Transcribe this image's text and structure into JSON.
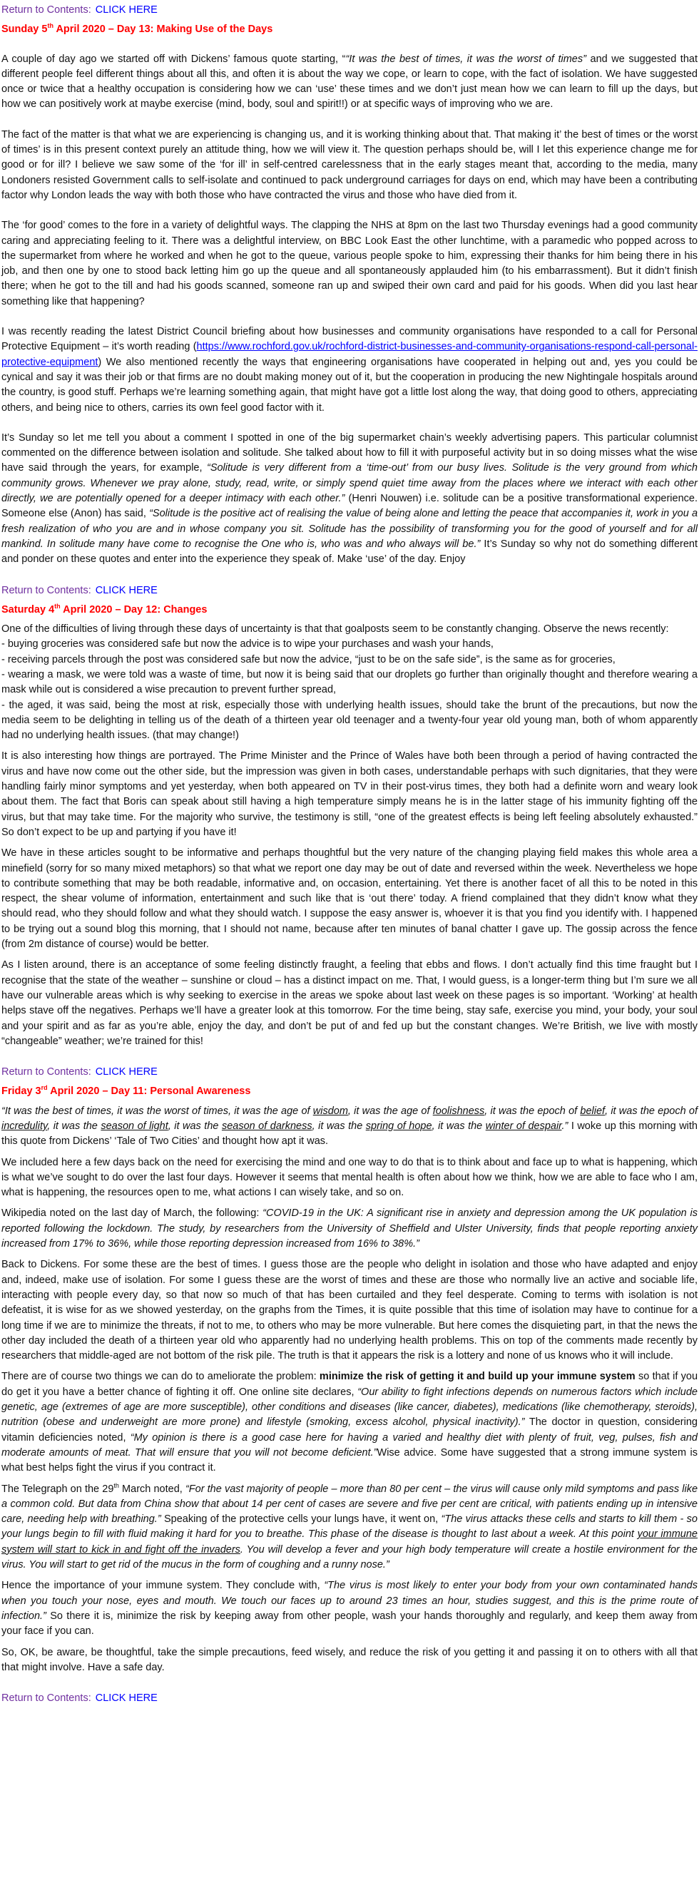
{
  "return_links": [
    {
      "label": "Return to Contents:",
      "link": "CLICK HERE"
    },
    {
      "label": "Return to Contents:",
      "link": "CLICK HERE"
    },
    {
      "label": "Return to Contents:",
      "link": "CLICK HERE"
    },
    {
      "label": "Return to Contents:",
      "link": "CLICK HERE"
    }
  ],
  "sections": [
    {
      "heading": [
        "Sunday 5",
        {
          "sup": "th"
        },
        " April 2020 – Day 13: Making Use of the Days"
      ],
      "paragraphs": [
        [
          "A couple of day ago we started off with Dickens’ famous quote starting, “",
          {
            "italic": "“It was the best of times, it was the worst of times”"
          },
          " and we suggested that different people feel different things about all this, and often it is about the way we cope, or learn to cope, with the fact of isolation. We have suggested once or twice that a healthy occupation is considering how we can ‘use’ these times and we don’t just mean how we can learn to fill up the days, but how we can positively work at maybe exercise (mind, body, soul and spirit!!) or at specific ways of improving who we are."
        ],
        [
          "The fact of the matter is that what we are experiencing is changing us, and it is working thinking about that. That making it’ the best of times or the worst of times’ is in this present context purely an attitude thing, how we will view it. The question perhaps should be, will I let this experience change me for good or for ill?  I believe we saw some of the ‘for ill’ in self-centred carelessness that in the early stages meant that, according to the media, many Londoners resisted Government calls to self-isolate and continued to pack underground carriages for days on end, which may have been a contributing factor why London leads the way with both those who have contracted the virus and those who have died from it."
        ],
        [
          "The ‘for good’ comes to the fore in a variety of delightful ways. The clapping the NHS at 8pm on the last two Thursday evenings had a good community caring and appreciating feeling to it. There was a delightful interview, on BBC Look East the other lunchtime, with a paramedic who popped across to the supermarket from where he worked and when he got to the queue, various people spoke to him, expressing their thanks for him being there in his job, and then one by one to stood back letting him go up the queue and all spontaneously applauded him (to his embarrassment). But it didn’t finish there; when he got to the till and had his goods scanned, someone ran up and swiped their own card and paid for his goods. When did you last hear something like that happening?"
        ],
        [
          "I was recently reading the latest District Council briefing about how businesses and community organisations have responded to a call for Personal Protective Equipment – it’s worth reading (",
          {
            "link": "https://www.rochford.gov.uk/rochford-district-businesses-and-community-organisations-respond-call-personal-protective-equipment"
          },
          ") We also mentioned recently the ways that engineering organisations have cooperated in helping out and, yes you could be cynical and say it was their job or that firms are no doubt making money out of it, but the cooperation in producing the new Nightingale hospitals around the country, is good stuff.  Perhaps we’re learning something again, that might have got a little lost along the way, that doing good to others, appreciating others, and being nice to others, carries its own feel good factor with it."
        ],
        [
          "It’s Sunday so let me tell you about a comment I spotted in one of the big supermarket chain’s weekly advertising papers. This particular columnist commented on the difference between isolation and solitude. She talked about how to fill it with purposeful activity but in so doing misses what the wise have said through the years, for example, ",
          {
            "italic": "“Solitude is very different from a ‘time-out’ from our busy lives. Solitude is the very ground from which community grows. Whenever we pray alone, study, read, write, or simply spend quiet time away from the places where we interact with each other directly, we are potentially opened for a deeper intimacy with each other.”"
          },
          " (Henri Nouwen) i.e. solitude can be a positive transformational experience. Someone else (Anon) has said, ",
          {
            "italic": "“Solitude is the positive act of realising the value of being alone and letting the peace that accompanies it, work in you a fresh realization of who you are and in whose company you sit. Solitude has the possibility of transforming you for the good of yourself and for all mankind. In solitude many have come to recognise the One who is, who was and who always will be.”"
          },
          " It’s Sunday so why not do something different and ponder on these quotes and enter into the experience they speak of.  Make ‘use’ of the day. Enjoy"
        ]
      ]
    },
    {
      "heading": [
        "Saturday 4",
        {
          "sup": "th"
        },
        " April 2020 – Day 12: Changes"
      ],
      "paragraphs": [
        [
          "One of the difficulties of living through these days of uncertainty is that that goalposts seem to be constantly changing. Observe the news recently:",
          {
            "line": "- buying groceries was considered safe but now the advice is to wipe your purchases and wash your hands,"
          },
          {
            "line": "- receiving parcels through the post was considered safe but now the advice, “just to be on the safe side”, is the same as for groceries,"
          },
          {
            "line": "- wearing a mask, we were told was a waste of time, but now it is being said that our droplets go further than originally thought and therefore wearing a mask while out is considered a wise precaution to prevent further spread,"
          },
          {
            "line": "- the aged, it was said, being the most at risk, especially those with underlying health issues, should take the brunt of the precautions, but now the media seem to be delighting in telling us of the death of a thirteen year old teenager and a twenty-four year old young man, both of whom apparently had no underlying health issues. (that may change!)"
          }
        ],
        [
          "It is also interesting how things are portrayed. The Prime Minister and the Prince of Wales have both been through a period of having contracted the virus and have now come out the other side, but the impression was given in both cases, understandable perhaps with such dignitaries, that they were handling fairly minor symptoms and yet yesterday, when both appeared on TV in their post-virus times, they both had a definite worn and weary look about them. The fact that Boris can speak about still having a high temperature simply means he is in the latter stage of his immunity fighting off the virus, but that may take time. For the majority who survive, the testimony is still, “one of the greatest effects is being left feeling absolutely exhausted.” So don’t expect to be up and partying if you have it!"
        ],
        [
          "We have in these articles sought to be informative and perhaps thoughtful but the very nature of the changing playing field makes this whole area a minefield (sorry for so many mixed metaphors) so that what we report one day may be out of date and reversed within the week. Nevertheless we hope to contribute something that may be both readable, informative and, on occasion, entertaining. Yet there is another facet of all this to be noted in this respect, the shear volume of information, entertainment and such like that is ‘out there’ today. A friend complained that they didn’t know what they should read, who they should follow and what they should watch. I suppose the easy answer is, whoever it is that you find you identify with. I happened to be trying out a sound blog this morning, that I should not name, because after ten minutes of banal chatter I gave up. The gossip across the fence (from 2m distance of course) would be better."
        ],
        [
          "As I listen around, there is an acceptance of some feeling distinctly fraught, a feeling that ebbs and flows. I don’t actually find this time fraught but I recognise that the state of the weather – sunshine or cloud – has a distinct impact on me. That, I would guess, is a longer-term thing but I’m sure we all have our vulnerable areas which is why seeking to exercise in the areas we spoke about last week on these pages is so important.  ‘Working’ at health helps stave off the negatives. Perhaps we’ll have a greater look at this tomorrow. For the time being, stay safe, exercise you mind, your body, your soul and your spirit and as far as you’re able, enjoy the day, and don’t be put of and fed up but the constant changes. We’re British, we live with mostly “changeable” weather; we’re trained for this!"
        ]
      ]
    },
    {
      "heading": [
        "Friday 3",
        {
          "sup": "rd"
        },
        "  April 2020 – Day 11: Personal Awareness"
      ],
      "paragraphs": [
        [
          {
            "italic": "“It was the best of times, it was the worst of times, it was the age of "
          },
          {
            "italic_underline": "wisdom"
          },
          {
            "italic": ", it was the age of "
          },
          {
            "italic_underline": "foolishness"
          },
          {
            "italic": ", it was the epoch of "
          },
          {
            "italic_underline": "belief"
          },
          {
            "italic": ", it was the epoch of "
          },
          {
            "italic_underline": "incredulity"
          },
          {
            "italic": ", it was the "
          },
          {
            "italic_underline": "season of light"
          },
          {
            "italic": ", it was the "
          },
          {
            "italic_underline": "season of darkness"
          },
          {
            "italic": ", it was the "
          },
          {
            "italic_underline": "spring of hope"
          },
          {
            "italic": ", it was the "
          },
          {
            "italic_underline": "winter of despair"
          },
          {
            "italic": ".”"
          },
          " I woke up this morning with this quote from Dickens’ ‘Tale of Two Cities’ and thought how apt it was."
        ],
        [
          "We included here a few days back on the need for exercising the mind and one way to do that is to think about and face up to what is happening, which is what we’ve sought to do over the last four days. However it seems that mental health is often about how we think, how we are able to face who I am, what is happening, the resources open to me, what actions I can wisely take, and so on."
        ],
        [
          "Wikipedia noted on the last day of March, the following: ",
          {
            "italic": "“COVID-19 in the UK: A significant rise in anxiety and depression among the UK population is reported following the lockdown. The study, by researchers from the University of Sheffield and Ulster University, finds that people reporting anxiety increased from 17% to 36%, while those reporting depression increased from 16% to 38%.”"
          }
        ],
        [
          "Back to Dickens. For some these are the best of times. I guess those are the people who delight in isolation and those who have adapted and enjoy and, indeed, make use of isolation. For some I guess these are the worst of times and these are those who normally live an active and sociable life, interacting with people every day, so that now so much of that has been curtailed and they feel desperate. Coming to terms with isolation is not defeatist, it is wise for as we showed yesterday, on the graphs from the Times, it is quite possible that this time of isolation may have to continue for a long time if we are to minimize the threats, if not to me, to others who may be more vulnerable. But here comes the disquieting part, in that the news the other day included the death of a thirteen year old who apparently had no underlying health problems. This on top of the comments made recently by researchers that middle-aged are not bottom of the risk pile. The truth is that it appears the risk is a lottery and none of us knows who it will include."
        ],
        [
          "There are of course two things we can do to ameliorate the problem: ",
          {
            "bold": "minimize the risk of getting it and build up your immune system"
          },
          " so that if you do get it you have a better chance of fighting it off. One online site declares, ",
          {
            "italic": "“Our ability to fight infections depends on numerous factors which include genetic, age (extremes of age are more susceptible), other conditions and diseases (like cancer, diabetes), medications (like chemotherapy, steroids), nutrition (obese and underweight are more prone) and lifestyle (smoking, excess alcohol, physical inactivity).”"
          },
          " The doctor in question, considering vitamin deficiencies noted, ",
          {
            "italic": "“My opinion is there is a good case here for having a varied and healthy diet with plenty of fruit, veg, pulses, fish and moderate amounts of meat. That will ensure that you will not become deficient.”"
          },
          "Wise advice. Some have suggested that a strong immune system is what best helps fight the virus if you contract it."
        ],
        [
          "The Telegraph on the 29",
          {
            "sup": "th"
          },
          " March noted, ",
          {
            "italic": "“For the vast majority of people – more than 80 per cent – the virus will cause only mild symptoms and pass like a common cold. But data from China show that about 14 per cent of cases are severe and five per cent are critical, with patients ending up in intensive care, needing help with breathing.”"
          },
          " Speaking of the protective cells your lungs have, it went on, ",
          {
            "italic": "“The virus attacks these cells and starts to kill them - so your lungs begin to fill with fluid making it hard for you to breathe. This phase of the disease is thought to last about a week. At this point "
          },
          {
            "italic_underline": "your immune system will start to kick in and fight off the invaders"
          },
          {
            "italic": ". You will develop a fever and your high body temperature will create a hostile environment for the virus. You will start to get rid of the mucus in the form of coughing and a runny nose.”"
          }
        ],
        [
          "Hence the importance of your immune system. They conclude with, ",
          {
            "italic": "“The virus is most likely to enter your body from your own contaminated hands when you touch your nose, eyes and mouth. We touch our faces up to around 23 times an hour, studies suggest, and this is the prime route of infection.”"
          },
          "  So there it is, minimize the risk by keeping away from other people, wash your hands thoroughly and regularly, and keep them away from your face if you can."
        ],
        [
          "So, OK, be aware, be thoughtful, take the simple precautions, feed wisely, and reduce the risk of you getting it and passing it on to others with all that that might involve. Have a safe day."
        ]
      ]
    }
  ]
}
